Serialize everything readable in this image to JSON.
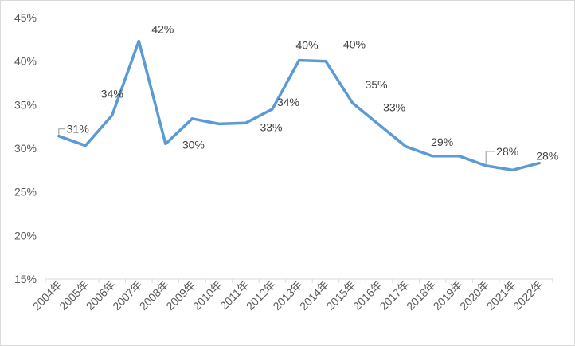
{
  "chart_data": {
    "type": "line",
    "title": "",
    "xlabel": "",
    "ylabel": "",
    "ylim": [
      15,
      45
    ],
    "y_ticks": [
      "45%",
      "40%",
      "35%",
      "30%",
      "25%",
      "20%",
      "15%"
    ],
    "y_tick_values": [
      45,
      40,
      35,
      30,
      25,
      20,
      15
    ],
    "categories": [
      "2004年",
      "2005年",
      "2006年",
      "2007年",
      "2008年",
      "2009年",
      "2010年",
      "2011年",
      "2012年",
      "2013年",
      "2014年",
      "2015年",
      "2016年",
      "2017年",
      "2018年",
      "2019年",
      "2020年",
      "2021年",
      "2022年"
    ],
    "series": [
      {
        "color": "#5b9bd5",
        "values": [
          31.4,
          30.3,
          33.8,
          42.3,
          30.5,
          33.4,
          32.8,
          32.9,
          34.5,
          40.1,
          40.0,
          35.2,
          32.7,
          30.2,
          29.1,
          29.1,
          28.0,
          27.5,
          28.3
        ],
        "labels": [
          "31%",
          "",
          "34%",
          "42%",
          "30%",
          "",
          "",
          "33%",
          "34%",
          "40%",
          "40%",
          "35%",
          "33%",
          "",
          "29%",
          "",
          "28%",
          "",
          "28%"
        ]
      }
    ],
    "grid": false,
    "legend": "none"
  }
}
